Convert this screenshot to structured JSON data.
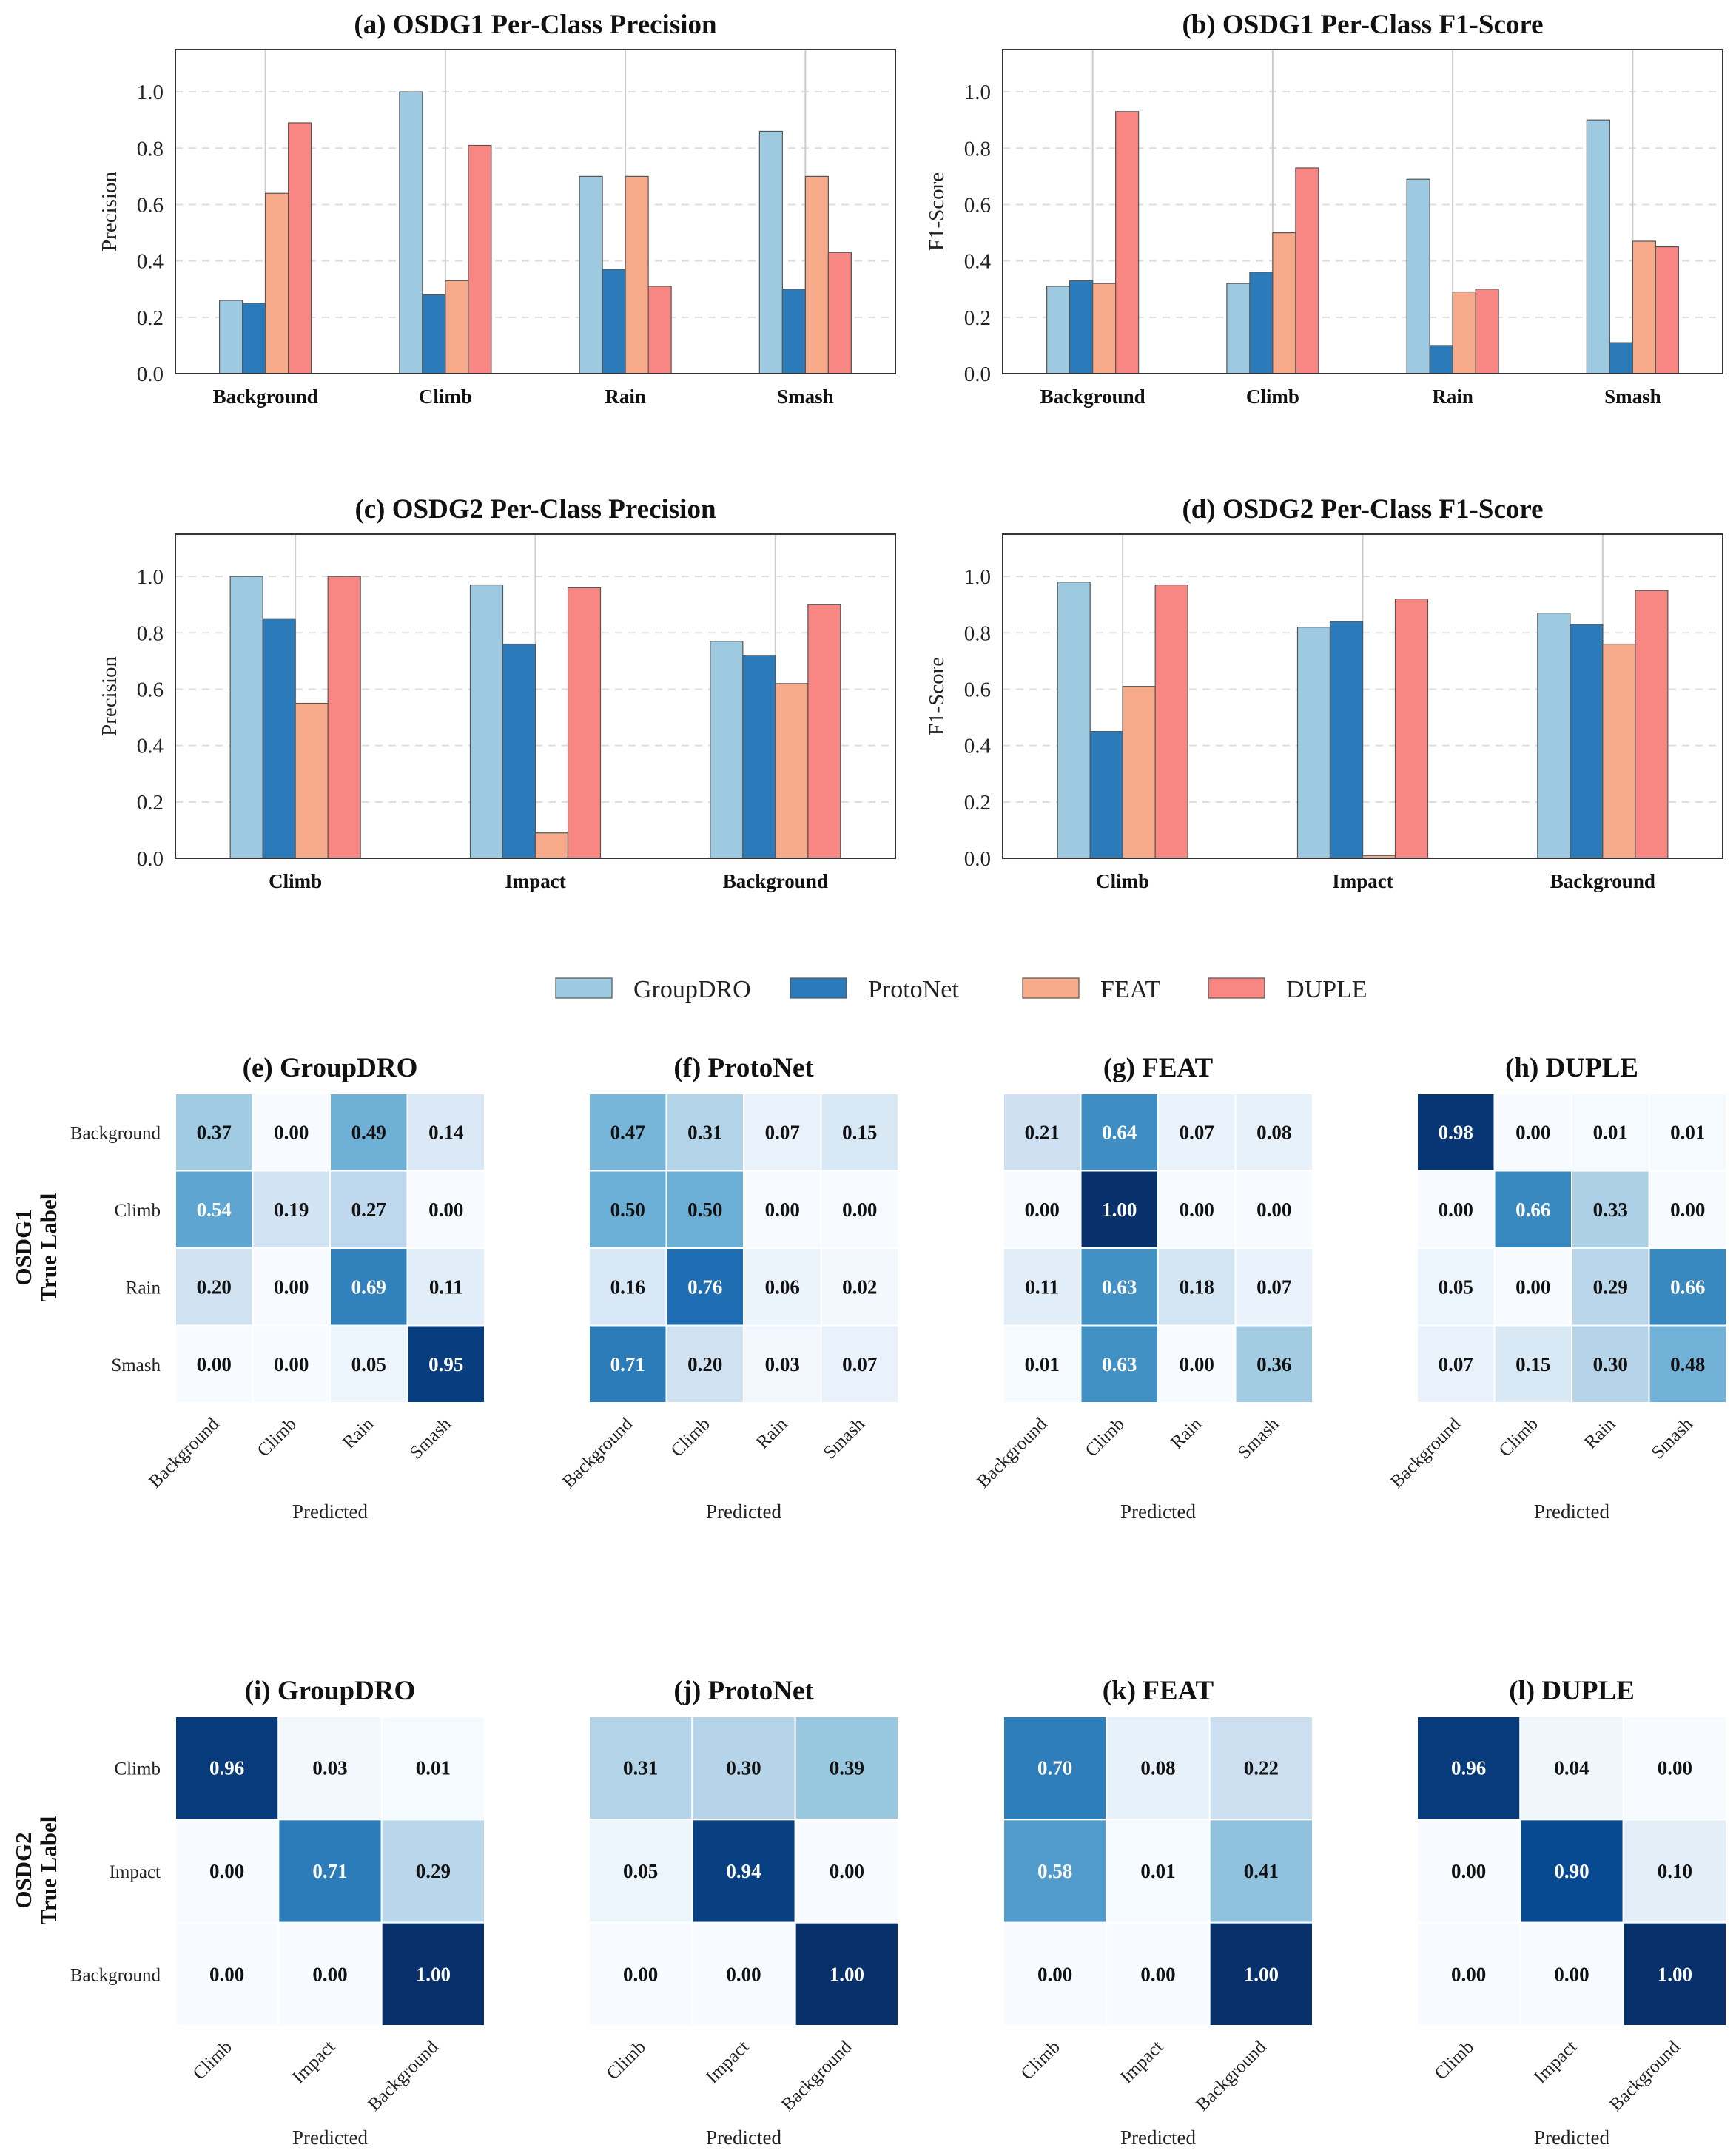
{
  "chart_data": {
    "type": "figure",
    "colors": {
      "GroupDRO": "#9ecae1",
      "ProtoNet": "#2b7bba",
      "FEAT": "#f7aa8a",
      "DUPLE": "#f88683"
    },
    "legend": [
      "GroupDRO",
      "ProtoNet",
      "FEAT",
      "DUPLE"
    ],
    "bar_panels": [
      {
        "id": "a",
        "type": "bar",
        "title": "(a) OSDG1 Per-Class Precision",
        "ylabel": "Precision",
        "ylim": [
          0,
          1.15
        ],
        "yticks": [
          "0.0",
          "0.2",
          "0.4",
          "0.6",
          "0.8",
          "1.0"
        ],
        "categories": [
          "Background",
          "Climb",
          "Rain",
          "Smash"
        ],
        "series": [
          {
            "name": "GroupDRO",
            "values": [
              0.26,
              1.0,
              0.7,
              0.86
            ]
          },
          {
            "name": "ProtoNet",
            "values": [
              0.25,
              0.28,
              0.37,
              0.3
            ]
          },
          {
            "name": "FEAT",
            "values": [
              0.64,
              0.33,
              0.7,
              0.7
            ]
          },
          {
            "name": "DUPLE",
            "values": [
              0.89,
              0.81,
              0.31,
              0.43
            ]
          }
        ]
      },
      {
        "id": "b",
        "type": "bar",
        "title": "(b) OSDG1 Per-Class F1-Score",
        "ylabel": "F1-Score",
        "ylim": [
          0,
          1.15
        ],
        "yticks": [
          "0.0",
          "0.2",
          "0.4",
          "0.6",
          "0.8",
          "1.0"
        ],
        "categories": [
          "Background",
          "Climb",
          "Rain",
          "Smash"
        ],
        "series": [
          {
            "name": "GroupDRO",
            "values": [
              0.31,
              0.32,
              0.69,
              0.9
            ]
          },
          {
            "name": "ProtoNet",
            "values": [
              0.33,
              0.36,
              0.1,
              0.11
            ]
          },
          {
            "name": "FEAT",
            "values": [
              0.32,
              0.5,
              0.29,
              0.47
            ]
          },
          {
            "name": "DUPLE",
            "values": [
              0.93,
              0.73,
              0.3,
              0.45
            ]
          }
        ]
      },
      {
        "id": "c",
        "type": "bar",
        "title": "(c) OSDG2 Per-Class Precision",
        "ylabel": "Precision",
        "ylim": [
          0,
          1.15
        ],
        "yticks": [
          "0.0",
          "0.2",
          "0.4",
          "0.6",
          "0.8",
          "1.0"
        ],
        "categories": [
          "Climb",
          "Impact",
          "Background"
        ],
        "series": [
          {
            "name": "GroupDRO",
            "values": [
              1.0,
              0.97,
              0.77
            ]
          },
          {
            "name": "ProtoNet",
            "values": [
              0.85,
              0.76,
              0.72
            ]
          },
          {
            "name": "FEAT",
            "values": [
              0.55,
              0.09,
              0.62
            ]
          },
          {
            "name": "DUPLE",
            "values": [
              1.0,
              0.96,
              0.9
            ]
          }
        ]
      },
      {
        "id": "d",
        "type": "bar",
        "title": "(d) OSDG2 Per-Class F1-Score",
        "ylabel": "F1-Score",
        "ylim": [
          0,
          1.15
        ],
        "yticks": [
          "0.0",
          "0.2",
          "0.4",
          "0.6",
          "0.8",
          "1.0"
        ],
        "categories": [
          "Climb",
          "Impact",
          "Background"
        ],
        "series": [
          {
            "name": "GroupDRO",
            "values": [
              0.98,
              0.82,
              0.87
            ]
          },
          {
            "name": "ProtoNet",
            "values": [
              0.45,
              0.84,
              0.83
            ]
          },
          {
            "name": "FEAT",
            "values": [
              0.61,
              0.01,
              0.76
            ]
          },
          {
            "name": "DUPLE",
            "values": [
              0.97,
              0.92,
              0.95
            ]
          }
        ]
      }
    ],
    "heatmap_rows": [
      {
        "row_label_1": "OSDG1",
        "row_label_2": "True Label",
        "classes": [
          "Background",
          "Climb",
          "Rain",
          "Smash"
        ],
        "xlabel": "Predicted",
        "matrices": [
          {
            "title": "(e) GroupDRO",
            "values": [
              [
                0.37,
                0.0,
                0.49,
                0.14
              ],
              [
                0.54,
                0.19,
                0.27,
                0.0
              ],
              [
                0.2,
                0.0,
                0.69,
                0.11
              ],
              [
                0.0,
                0.0,
                0.05,
                0.95
              ]
            ]
          },
          {
            "title": "(f) ProtoNet",
            "values": [
              [
                0.47,
                0.31,
                0.07,
                0.15
              ],
              [
                0.5,
                0.5,
                0.0,
                0.0
              ],
              [
                0.16,
                0.76,
                0.06,
                0.02
              ],
              [
                0.71,
                0.2,
                0.03,
                0.07
              ]
            ]
          },
          {
            "title": "(g) FEAT",
            "values": [
              [
                0.21,
                0.64,
                0.07,
                0.08
              ],
              [
                0.0,
                1.0,
                0.0,
                0.0
              ],
              [
                0.11,
                0.63,
                0.18,
                0.07
              ],
              [
                0.01,
                0.63,
                0.0,
                0.36
              ]
            ]
          },
          {
            "title": "(h) DUPLE",
            "values": [
              [
                0.98,
                0.0,
                0.01,
                0.01
              ],
              [
                0.0,
                0.66,
                0.33,
                0.0
              ],
              [
                0.05,
                0.0,
                0.29,
                0.66
              ],
              [
                0.07,
                0.15,
                0.3,
                0.48
              ]
            ]
          }
        ]
      },
      {
        "row_label_1": "OSDG2",
        "row_label_2": "True Label",
        "classes": [
          "Climb",
          "Impact",
          "Background"
        ],
        "xlabel": "Predicted",
        "matrices": [
          {
            "title": "(i) GroupDRO",
            "values": [
              [
                0.96,
                0.03,
                0.01
              ],
              [
                0.0,
                0.71,
                0.29
              ],
              [
                0.0,
                0.0,
                1.0
              ]
            ]
          },
          {
            "title": "(j) ProtoNet",
            "values": [
              [
                0.31,
                0.3,
                0.39
              ],
              [
                0.05,
                0.94,
                0.0
              ],
              [
                0.0,
                0.0,
                1.0
              ]
            ]
          },
          {
            "title": "(k) FEAT",
            "values": [
              [
                0.7,
                0.08,
                0.22
              ],
              [
                0.58,
                0.01,
                0.41
              ],
              [
                0.0,
                0.0,
                1.0
              ]
            ]
          },
          {
            "title": "(l) DUPLE",
            "values": [
              [
                0.96,
                0.04,
                0.0
              ],
              [
                0.0,
                0.9,
                0.1
              ],
              [
                0.0,
                0.0,
                1.0
              ]
            ]
          }
        ]
      }
    ]
  }
}
